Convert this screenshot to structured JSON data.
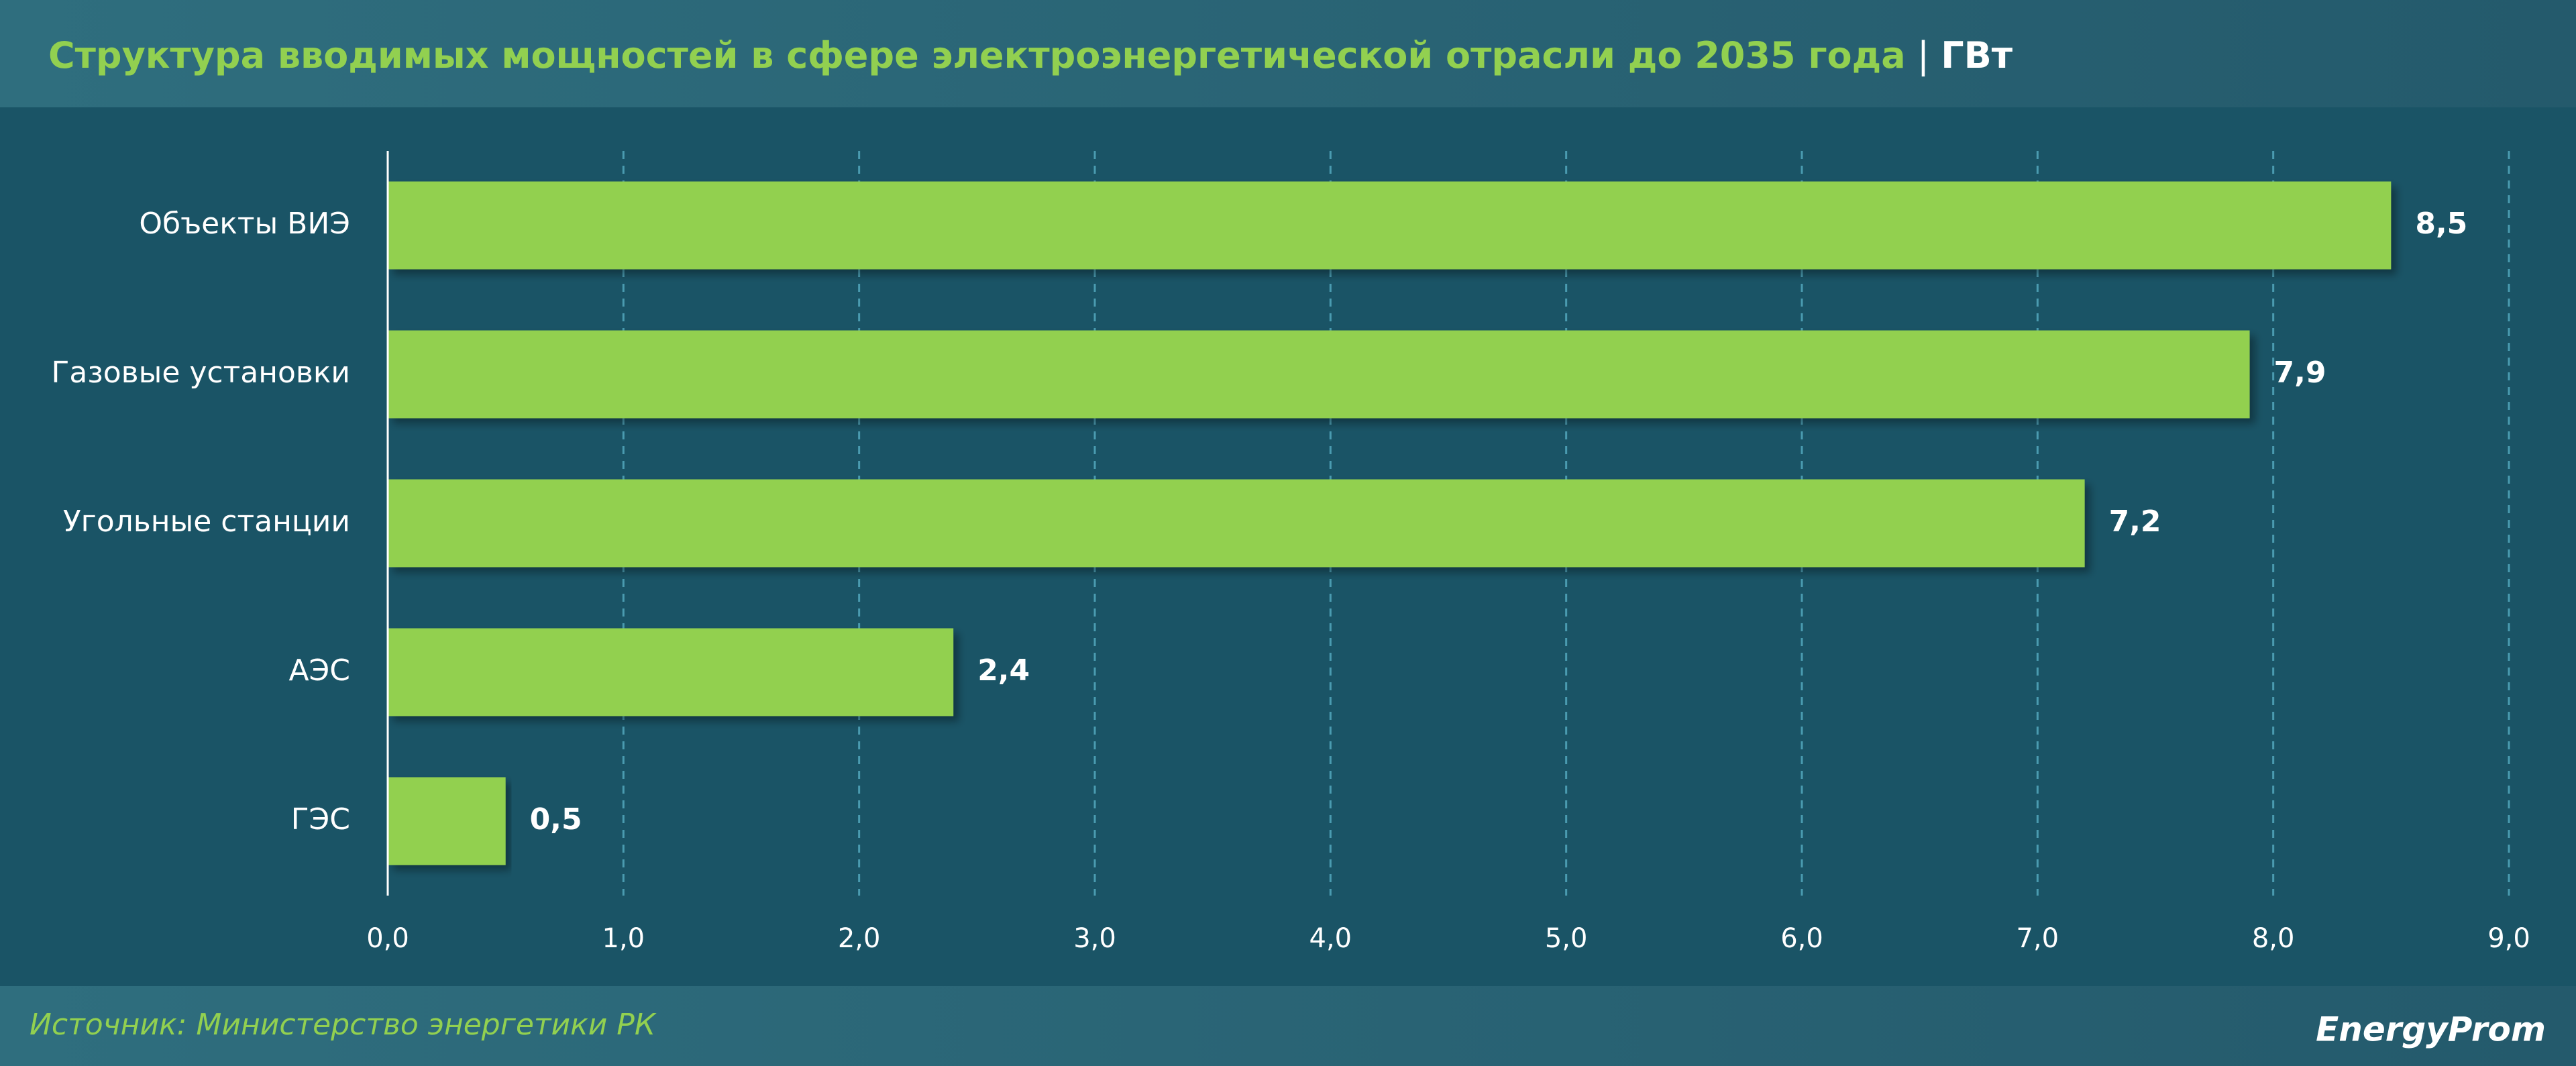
{
  "chart_data": {
    "type": "hbar",
    "title": "Структура вводимых мощностей в сфере электроэнергетической отрасли до 2035 года",
    "unit": "ГВт",
    "categories": [
      "Объекты ВИЭ",
      "Газовые установки",
      "Угольные станции",
      "АЭС",
      "ГЭС"
    ],
    "values": [
      8.5,
      7.9,
      7.2,
      2.4,
      0.5
    ],
    "value_labels": [
      "8,5",
      "7,9",
      "7,2",
      "2,4",
      "0,5"
    ],
    "color": "#92d050",
    "xlim": [
      0,
      9
    ],
    "xticks": [
      {
        "value": 0,
        "label": "0,0"
      },
      {
        "value": 1,
        "label": "1,0"
      },
      {
        "value": 2,
        "label": "2,0"
      },
      {
        "value": 3,
        "label": "3,0"
      },
      {
        "value": 4,
        "label": "4,0"
      },
      {
        "value": 5,
        "label": "5,0"
      },
      {
        "value": 6,
        "label": "6,0"
      },
      {
        "value": 7,
        "label": "7,0"
      },
      {
        "value": 8,
        "label": "8,0"
      },
      {
        "value": 9,
        "label": "9,0"
      }
    ],
    "grid": true,
    "source": "Источник: Министерство энергетики РК",
    "brand": "EnergyProm"
  }
}
